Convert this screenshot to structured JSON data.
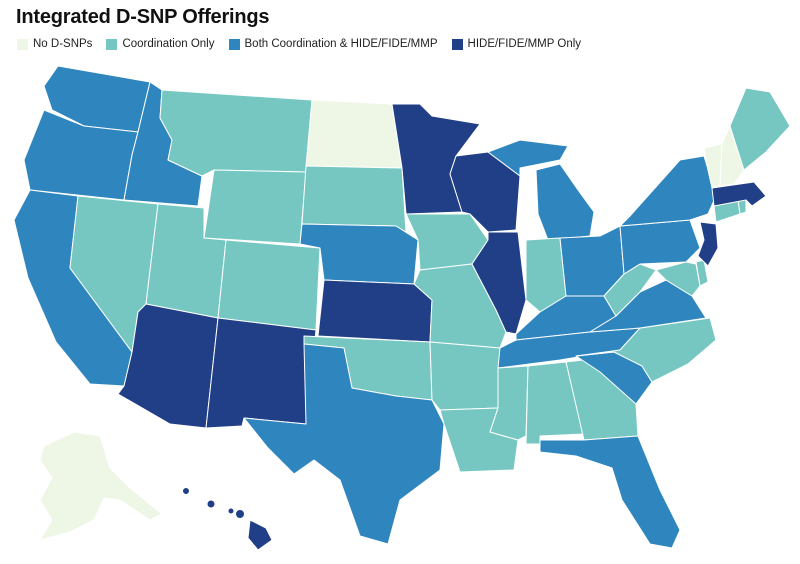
{
  "title": "Integrated D-SNP Offerings",
  "legend": [
    {
      "label": "No D-SNPs",
      "color": "#eef7e6"
    },
    {
      "label": "Coordination Only",
      "color": "#76c7c2"
    },
    {
      "label": "Both Coordination & HIDE/FIDE/MMP",
      "color": "#2f86bf"
    },
    {
      "label": "HIDE/FIDE/MMP Only",
      "color": "#213f86"
    }
  ],
  "categories": {
    "no_dsnps": [
      "ND",
      "VT",
      "NH",
      "AK"
    ],
    "coordination_only": [
      "MT",
      "WY",
      "SD",
      "NV",
      "UT",
      "CO",
      "IA",
      "MO",
      "OK",
      "AR",
      "LA",
      "MS",
      "AL",
      "GA",
      "NC",
      "IN",
      "WV",
      "ME",
      "CT",
      "RI",
      "DE",
      "MD"
    ],
    "both": [
      "WA",
      "OR",
      "ID",
      "CA",
      "NE",
      "TX",
      "MI",
      "OH",
      "KY",
      "TN",
      "SC",
      "FL",
      "VA",
      "PA",
      "NY"
    ],
    "hide_fide_mmp_only": [
      "MN",
      "WI",
      "IL",
      "KS",
      "AZ",
      "NM",
      "MA",
      "NJ",
      "HI"
    ]
  }
}
